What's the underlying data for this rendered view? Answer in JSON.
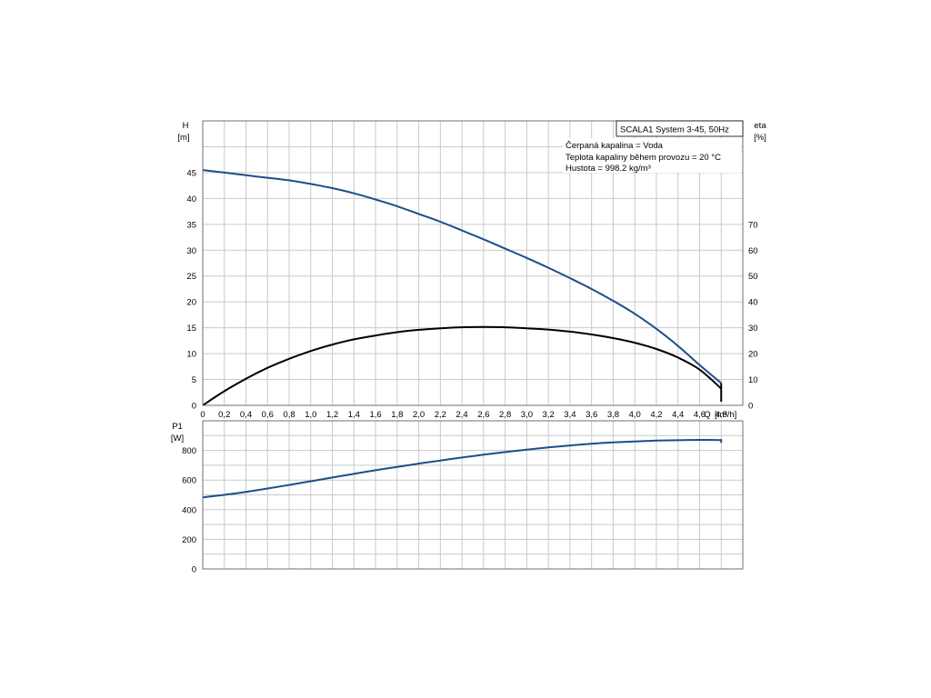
{
  "chart_data": [
    {
      "type": "line",
      "title": "SCALA1 System 3-45, 50Hz",
      "notes": [
        "Čerpaná kapalina = Voda",
        "Teplota kapaliny během provozu = 20 °C",
        "Hustota = 998.2 kg/m³"
      ],
      "xlabel": "Q [m³/h]",
      "xunit": "[m³/h]",
      "xlabel_prefix": "Q",
      "ylabel": "H",
      "yunit": "[m]",
      "y2label": "eta",
      "y2unit": "[%]",
      "xlim": [
        0,
        5.0
      ],
      "ylim": [
        0,
        55
      ],
      "y2lim": [
        0,
        110
      ],
      "x_ticks": [
        "0",
        "0,2",
        "0,4",
        "0,6",
        "0,8",
        "1,0",
        "1,2",
        "1,4",
        "1,6",
        "1,8",
        "2,0",
        "2,2",
        "2,4",
        "2,6",
        "2,8",
        "3,0",
        "3,2",
        "3,4",
        "3,6",
        "3,8",
        "4,0",
        "4,2",
        "4,4",
        "4,6",
        "4,8"
      ],
      "y_ticks": [
        "0",
        "5",
        "10",
        "15",
        "20",
        "25",
        "30",
        "35",
        "40",
        "45"
      ],
      "y2_ticks": [
        "0",
        "10",
        "20",
        "30",
        "40",
        "50",
        "60",
        "70"
      ],
      "grid": true,
      "series": [
        {
          "axis": "left",
          "color": "#1c4e8a",
          "x": [
            0,
            0.2,
            0.4,
            0.6,
            0.8,
            1.0,
            1.2,
            1.4,
            1.6,
            1.8,
            2.0,
            2.2,
            2.4,
            2.6,
            2.8,
            3.0,
            3.2,
            3.4,
            3.6,
            3.8,
            4.0,
            4.2,
            4.4,
            4.6,
            4.8
          ],
          "values": [
            45.5,
            45.0,
            44.5,
            44.0,
            43.5,
            42.8,
            42.0,
            41.0,
            39.8,
            38.5,
            37.0,
            35.5,
            33.8,
            32.1,
            30.3,
            28.5,
            26.6,
            24.6,
            22.5,
            20.2,
            17.7,
            14.8,
            11.5,
            7.8,
            4.3
          ]
        },
        {
          "axis": "right",
          "color": "#000000",
          "x": [
            0,
            0.2,
            0.4,
            0.6,
            0.8,
            1.0,
            1.2,
            1.4,
            1.6,
            1.8,
            2.0,
            2.2,
            2.4,
            2.6,
            2.8,
            3.0,
            3.2,
            3.4,
            3.6,
            3.8,
            4.0,
            4.2,
            4.4,
            4.6,
            4.8
          ],
          "values": [
            0,
            5.5,
            10.3,
            14.5,
            18.0,
            21.0,
            23.5,
            25.5,
            27.0,
            28.3,
            29.2,
            29.8,
            30.2,
            30.3,
            30.2,
            29.8,
            29.3,
            28.5,
            27.4,
            26.0,
            24.2,
            21.8,
            18.5,
            13.8,
            6.5
          ]
        }
      ]
    },
    {
      "type": "line",
      "title": "",
      "ylabel": "P1",
      "yunit": "[W]",
      "xlim": [
        0,
        5.0
      ],
      "ylim": [
        0,
        1000
      ],
      "y_ticks": [
        "0",
        "200",
        "400",
        "600",
        "800"
      ],
      "grid": true,
      "series": [
        {
          "axis": "left",
          "color": "#1c4e8a",
          "x": [
            0,
            0.2,
            0.4,
            0.6,
            0.8,
            1.0,
            1.2,
            1.4,
            1.6,
            1.8,
            2.0,
            2.2,
            2.4,
            2.6,
            2.8,
            3.0,
            3.2,
            3.4,
            3.6,
            3.8,
            4.0,
            4.2,
            4.4,
            4.6,
            4.8
          ],
          "values": [
            483,
            500,
            520,
            543,
            567,
            592,
            617,
            642,
            666,
            689,
            711,
            732,
            752,
            771,
            789,
            805,
            820,
            833,
            845,
            854,
            861,
            866,
            869,
            871,
            870
          ]
        }
      ]
    }
  ]
}
